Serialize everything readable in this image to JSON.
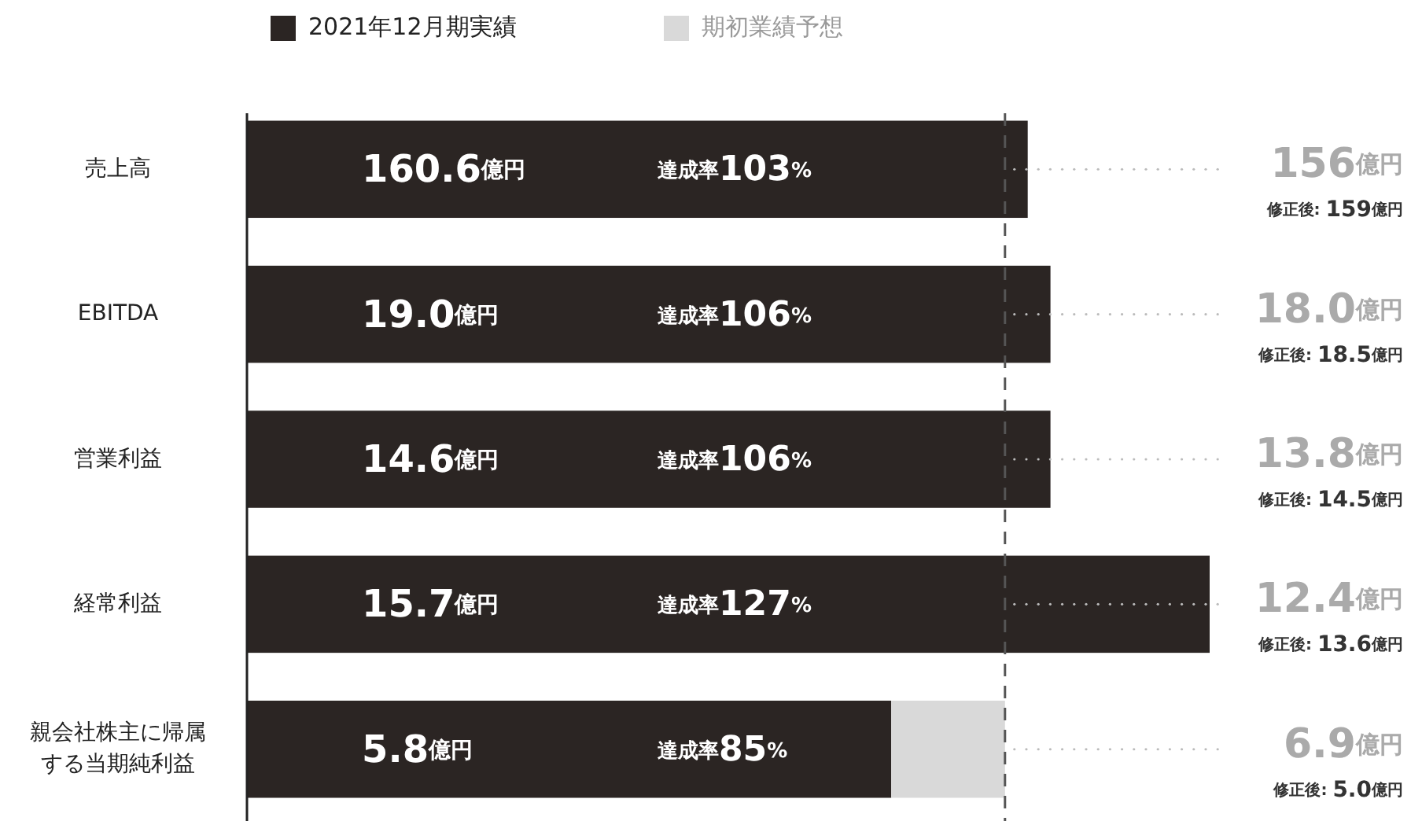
{
  "chart_data": {
    "type": "bar",
    "orientation": "horizontal",
    "stacked": true,
    "legend": "top left",
    "tick_labels": "y",
    "categories": [
      "売上高",
      "EBITDA",
      "営業利益",
      "経常利益",
      "親会社株主に帰属する当期純利益"
    ],
    "series": [
      {
        "name": "2021年12月期実績",
        "color": "#2b2523",
        "values": [
          103,
          106,
          106,
          127,
          85
        ],
        "value_labels": [
          "達成率103%",
          "達成率106%",
          "達成率106%",
          "達成率127%",
          "達成率85%"
        ]
      },
      {
        "name": "期初業績予想",
        "color": "#d9d9d9",
        "values": [
          0,
          0,
          0,
          0,
          15
        ]
      }
    ],
    "ref_lines": [
      {
        "axis": "x",
        "value": 100,
        "line_style": "dashed",
        "color": "#555555"
      }
    ],
    "annotations": [
      "160.6億円",
      "19.0億円",
      "14.6億円",
      "15.7億円",
      "5.8億円",
      "156億円",
      "18.0億円",
      "13.8億円",
      "12.4億円",
      "6.9億円",
      "修正後: 159億円",
      "修正後: 18.5億円",
      "修正後: 14.5億円",
      "修正後: 13.6億円",
      "修正後: 5.0億円"
    ]
  }
}
